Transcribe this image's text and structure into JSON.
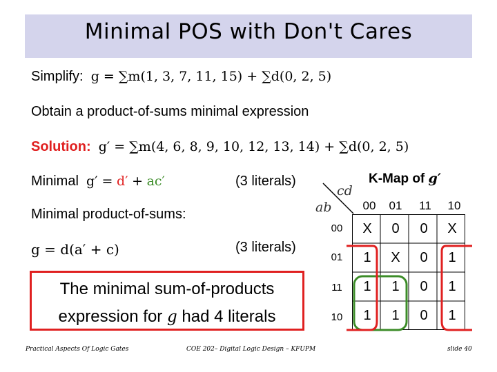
{
  "title": "Minimal POS with Don't Cares",
  "simplify": {
    "label": "Simplify:",
    "expr": "g = ∑m(1, 3, 7, 11, 15) + ∑d(0, 2, 5)"
  },
  "obtain_text": "Obtain a product-of-sums minimal expression",
  "solution": {
    "label": "Solution:",
    "expr": "g′ = ∑m(4, 6, 8, 9, 10, 12, 13, 14) + ∑d(0, 2, 5)"
  },
  "minimal_g_prime": {
    "label": "Minimal",
    "expr_lhs": "g′ =",
    "term1": "d′",
    "plus": "+",
    "term2": "ac′",
    "literals": "(3 literals)"
  },
  "minimal_pos": {
    "label": "Minimal product-of-sums:",
    "expr": "g = d(a′ + c)",
    "literals": "(3 literals)"
  },
  "boxed_note": {
    "line1": "The minimal sum-of-products",
    "line2_pre": "expression for",
    "line2_var": "g",
    "line2_post": "had 4 literals"
  },
  "kmap": {
    "title": "K-Map of",
    "title_var": "g′",
    "col_var": "cd",
    "row_var": "ab",
    "col_headers": [
      "00",
      "01",
      "11",
      "10"
    ],
    "row_headers": [
      "00",
      "01",
      "11",
      "10"
    ],
    "cells": [
      [
        "X",
        "0",
        "0",
        "X"
      ],
      [
        "1",
        "X",
        "0",
        "1"
      ],
      [
        "1",
        "1",
        "0",
        "1"
      ],
      [
        "1",
        "1",
        "0",
        "1"
      ]
    ]
  },
  "colors": {
    "title_bg": "#d4d4ec",
    "accent_red": "#e02020",
    "term_green": "#3c8c28"
  },
  "footer": {
    "left": "Practical Aspects Of Logic Gates",
    "center": "COE 202– Digital Logic Design – KFUPM",
    "right": "slide 40"
  }
}
